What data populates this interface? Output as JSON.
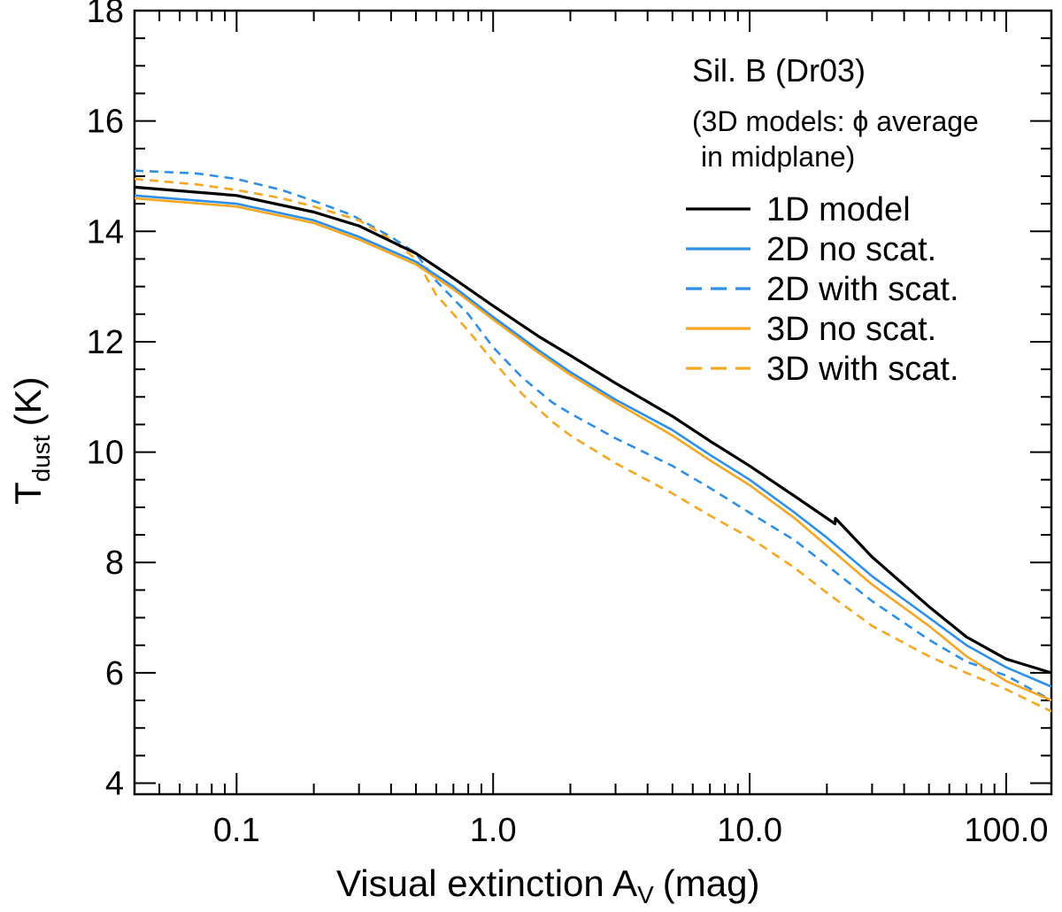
{
  "chart_data": {
    "type": "line",
    "title": "",
    "xscale": "log",
    "xlim": [
      0.04,
      150
    ],
    "ylim": [
      3.8,
      18
    ],
    "grid": false,
    "xlabel": "Visual extinction A",
    "xlabel_sub": "V",
    "xlabel_unit": "(mag)",
    "ylabel": "T",
    "ylabel_sub": "dust",
    "ylabel_unit": "(K)",
    "xticks": [
      0.1,
      1.0,
      10.0,
      100.0
    ],
    "xtick_labels": [
      "0.1",
      "1.0",
      "10.0",
      "100.0"
    ],
    "yticks": [
      4,
      6,
      8,
      10,
      12,
      14,
      16,
      18
    ],
    "ytick_labels": [
      "4",
      "6",
      "8",
      "10",
      "12",
      "14",
      "16",
      "18"
    ],
    "annotations": {
      "material": "Sil. B (Dr03)",
      "note_line1": "(3D models: ϕ average",
      "note_line2": "in midplane)"
    },
    "legend_position": "top-right",
    "colors": {
      "black": "#000000",
      "blue": "#2f8fe6",
      "orange": "#f5a623"
    },
    "series": [
      {
        "name": "1D model",
        "color": "#000000",
        "dash": "solid",
        "x": [
          0.04,
          0.1,
          0.2,
          0.3,
          0.5,
          0.7,
          1.0,
          1.5,
          2.0,
          3.0,
          5.0,
          7.0,
          10.0,
          15.0,
          21.5,
          21.6,
          30.0,
          50.0,
          70.0,
          100.0,
          150.0
        ],
        "y": [
          14.8,
          14.65,
          14.35,
          14.1,
          13.6,
          13.15,
          12.65,
          12.1,
          11.75,
          11.25,
          10.65,
          10.2,
          9.75,
          9.2,
          8.7,
          8.8,
          8.1,
          7.2,
          6.65,
          6.25,
          6.0
        ]
      },
      {
        "name": "2D no scat.",
        "color": "#2f8fe6",
        "dash": "solid",
        "x": [
          0.04,
          0.1,
          0.2,
          0.3,
          0.5,
          0.7,
          1.0,
          1.5,
          2.0,
          3.0,
          5.0,
          7.0,
          10.0,
          15.0,
          20.0,
          30.0,
          50.0,
          70.0,
          100.0,
          150.0
        ],
        "y": [
          14.65,
          14.5,
          14.2,
          13.9,
          13.45,
          13.0,
          12.45,
          11.85,
          11.45,
          10.95,
          10.4,
          9.95,
          9.5,
          8.9,
          8.45,
          7.75,
          7.0,
          6.5,
          6.1,
          5.75
        ]
      },
      {
        "name": "2D with scat.",
        "color": "#2f8fe6",
        "dash": "dashed",
        "x": [
          0.04,
          0.07,
          0.1,
          0.15,
          0.2,
          0.28,
          0.4,
          0.5,
          0.6,
          0.8,
          1.0,
          1.3,
          1.7,
          2.0,
          3.0,
          5.0,
          7.0,
          10.0,
          15.0,
          20.0,
          30.0,
          50.0,
          70.0,
          100.0,
          150.0
        ],
        "y": [
          15.1,
          15.05,
          14.95,
          14.75,
          14.55,
          14.3,
          13.9,
          13.6,
          13.1,
          12.5,
          11.9,
          11.35,
          10.9,
          10.7,
          10.25,
          9.75,
          9.35,
          8.9,
          8.4,
          7.95,
          7.3,
          6.6,
          6.2,
          5.95,
          5.5
        ]
      },
      {
        "name": "3D no scat.",
        "color": "#f5a623",
        "dash": "solid",
        "x": [
          0.04,
          0.1,
          0.2,
          0.3,
          0.5,
          0.7,
          1.0,
          1.5,
          2.0,
          3.0,
          5.0,
          7.0,
          10.0,
          15.0,
          20.0,
          30.0,
          50.0,
          70.0,
          100.0,
          150.0
        ],
        "y": [
          14.6,
          14.45,
          14.15,
          13.85,
          13.4,
          12.95,
          12.4,
          11.8,
          11.4,
          10.9,
          10.3,
          9.85,
          9.4,
          8.8,
          8.3,
          7.6,
          6.85,
          6.3,
          5.85,
          5.5
        ]
      },
      {
        "name": "3D with scat.",
        "color": "#f5a623",
        "dash": "dashed",
        "x": [
          0.04,
          0.07,
          0.1,
          0.15,
          0.2,
          0.3,
          0.4,
          0.5,
          0.6,
          0.8,
          1.0,
          1.3,
          1.7,
          2.0,
          3.0,
          5.0,
          7.0,
          10.0,
          15.0,
          20.0,
          30.0,
          50.0,
          70.0,
          100.0,
          150.0
        ],
        "y": [
          14.95,
          14.85,
          14.75,
          14.6,
          14.45,
          14.2,
          13.85,
          13.5,
          12.85,
          12.2,
          11.65,
          11.05,
          10.55,
          10.3,
          9.8,
          9.25,
          8.85,
          8.45,
          7.9,
          7.45,
          6.85,
          6.3,
          6.0,
          5.7,
          5.3
        ]
      }
    ]
  }
}
